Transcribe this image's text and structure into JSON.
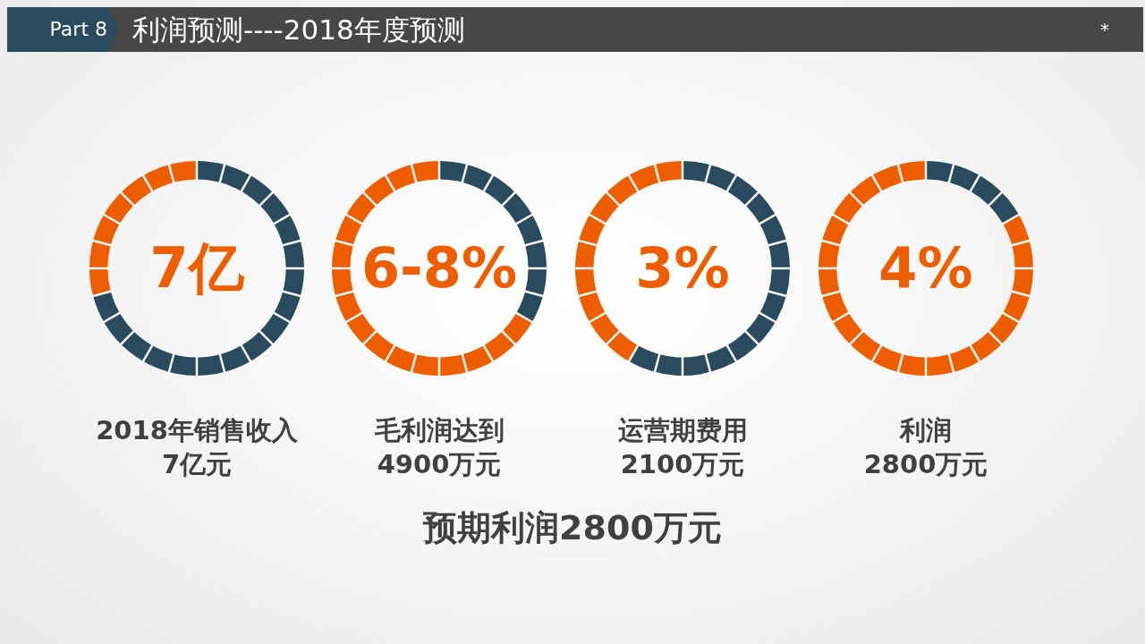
{
  "chart_data": [
    {
      "type": "other",
      "title": "利润预测----2018年度预测",
      "annotations": [
        "Part 8",
        "*",
        "预期利润2800万元"
      ]
    },
    {
      "type": "donut",
      "title": "2018年销售收入",
      "subtitle": "7亿元",
      "annotations": [
        "7亿"
      ],
      "categories": [
        null,
        null
      ],
      "values": [
        70.83,
        29.17
      ],
      "colors": [
        "#2a4a5e",
        "#ee5d00"
      ]
    },
    {
      "type": "donut",
      "title": "毛利润达到",
      "subtitle": "4900万元",
      "annotations": [
        "6-8%"
      ],
      "categories": [
        null,
        null
      ],
      "values": [
        33.33,
        66.67
      ],
      "colors": [
        "#2a4a5e",
        "#ee5d00"
      ]
    },
    {
      "type": "donut",
      "title": "运营期费用",
      "subtitle": "2100万元",
      "annotations": [
        "3%"
      ],
      "categories": [
        null,
        null
      ],
      "values": [
        58.33,
        41.67
      ],
      "colors": [
        "#2a4a5e",
        "#ee5d00"
      ]
    },
    {
      "type": "donut",
      "title": "利润",
      "subtitle": "2800万元",
      "annotations": [
        "4%"
      ],
      "categories": [
        null,
        null
      ],
      "values": [
        16.67,
        83.33
      ],
      "colors": [
        "#2a4a5e",
        "#ee5d00"
      ]
    }
  ]
}
